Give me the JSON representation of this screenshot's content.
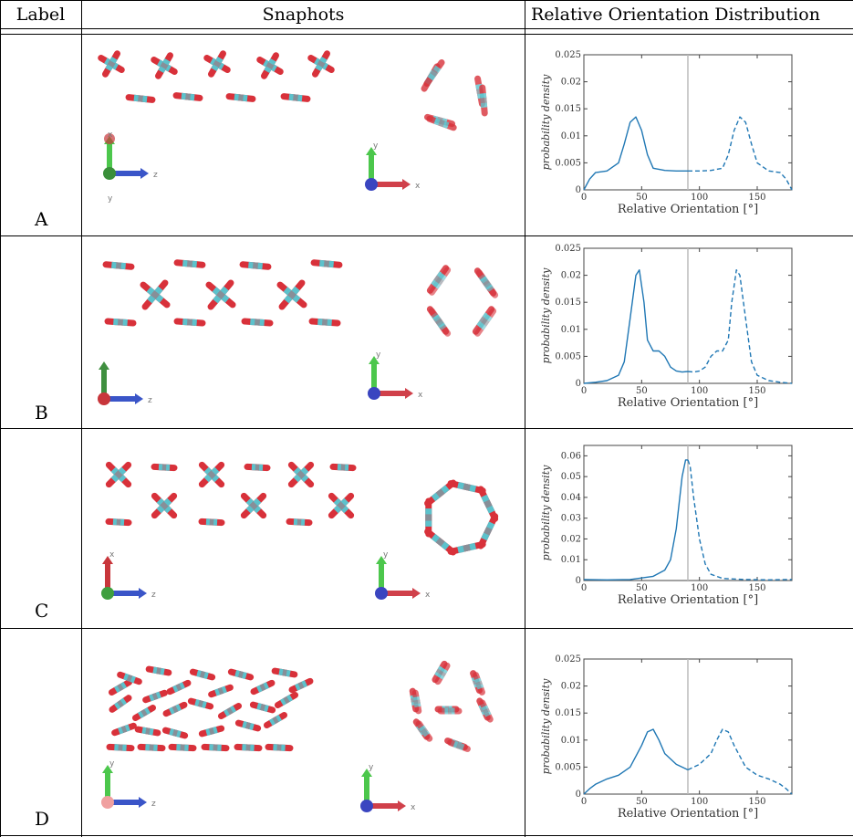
{
  "table": {
    "headers": [
      "Label",
      "Snaphots",
      "Relative Orientation Distribution"
    ],
    "rows": [
      {
        "label": "A",
        "left_axes": [
          "x",
          "z",
          "y"
        ],
        "right_axes": [
          "y",
          "x"
        ]
      },
      {
        "label": "B",
        "left_axes": [
          "z"
        ],
        "right_axes": [
          "y",
          "x"
        ]
      },
      {
        "label": "C",
        "left_axes": [
          "x",
          "z"
        ],
        "right_axes": [
          "y",
          "x"
        ]
      },
      {
        "label": "D",
        "left_axes": [
          "y",
          "z"
        ],
        "right_axes": [
          "y",
          "x"
        ]
      }
    ]
  },
  "colors": {
    "oxygen": "#d8313a",
    "carbon": "#5cc2cc",
    "line": "#1f77b4",
    "marker": "#bbbbbb"
  },
  "chart_data": [
    {
      "type": "line",
      "xlabel": "Relative Orientation [°]",
      "ylabel": "probability density",
      "xlim": [
        0,
        180
      ],
      "ylim": [
        0,
        0.025
      ],
      "xticks": [
        0,
        50,
        100,
        150
      ],
      "yticks": [
        0,
        0.005,
        0.01,
        0.015,
        0.02,
        0.025
      ],
      "ytick_labels": [
        "0",
        "0.005",
        "0.01",
        "0.015",
        "0.02",
        "0.025"
      ],
      "vline": 90,
      "series": [
        {
          "style": "solid",
          "x": [
            0,
            5,
            10,
            20,
            30,
            35,
            40,
            45,
            50,
            55,
            60,
            70,
            80,
            90
          ],
          "y": [
            0.0,
            0.002,
            0.0032,
            0.0035,
            0.005,
            0.0085,
            0.0125,
            0.0135,
            0.011,
            0.0065,
            0.004,
            0.0036,
            0.0035,
            0.0035
          ]
        },
        {
          "style": "dashed",
          "x": [
            90,
            100,
            110,
            120,
            125,
            130,
            135,
            140,
            145,
            150,
            160,
            170,
            175,
            180
          ],
          "y": [
            0.0035,
            0.0035,
            0.0036,
            0.004,
            0.0065,
            0.011,
            0.0135,
            0.0125,
            0.0085,
            0.005,
            0.0035,
            0.0032,
            0.002,
            0.0
          ]
        }
      ]
    },
    {
      "type": "line",
      "xlabel": "Relative Orientation [°]",
      "ylabel": "probability density",
      "xlim": [
        0,
        180
      ],
      "ylim": [
        0,
        0.025
      ],
      "xticks": [
        0,
        50,
        100,
        150
      ],
      "yticks": [
        0,
        0.005,
        0.01,
        0.015,
        0.02,
        0.025
      ],
      "ytick_labels": [
        "0",
        "0.005",
        "0.01",
        "0.015",
        "0.02",
        "0.025"
      ],
      "vline": 90,
      "series": [
        {
          "style": "solid",
          "x": [
            0,
            10,
            20,
            30,
            35,
            40,
            45,
            48,
            52,
            55,
            60,
            65,
            70,
            75,
            80,
            85,
            90
          ],
          "y": [
            0.0,
            0.0002,
            0.0005,
            0.0015,
            0.004,
            0.012,
            0.02,
            0.021,
            0.015,
            0.008,
            0.006,
            0.006,
            0.005,
            0.003,
            0.0023,
            0.0021,
            0.0022
          ]
        },
        {
          "style": "dashed",
          "x": [
            90,
            95,
            100,
            105,
            110,
            115,
            120,
            125,
            128,
            132,
            135,
            140,
            145,
            150,
            160,
            170,
            180
          ],
          "y": [
            0.0022,
            0.0021,
            0.0023,
            0.003,
            0.005,
            0.006,
            0.006,
            0.008,
            0.015,
            0.021,
            0.02,
            0.012,
            0.004,
            0.0015,
            0.0005,
            0.0002,
            0.0
          ]
        }
      ]
    },
    {
      "type": "line",
      "xlabel": "Relative Orientation [°]",
      "ylabel": "probability density",
      "xlim": [
        0,
        180
      ],
      "ylim": [
        0,
        0.065
      ],
      "xticks": [
        0,
        50,
        100,
        150
      ],
      "yticks": [
        0,
        0.01,
        0.02,
        0.03,
        0.04,
        0.05,
        0.06
      ],
      "ytick_labels": [
        "0",
        "0.01",
        "0.02",
        "0.03",
        "0.04",
        "0.05",
        "0.06"
      ],
      "vline": 90,
      "series": [
        {
          "style": "solid",
          "x": [
            0,
            20,
            40,
            60,
            70,
            75,
            80,
            85,
            88,
            90
          ],
          "y": [
            0.0005,
            0.0003,
            0.0005,
            0.002,
            0.005,
            0.01,
            0.025,
            0.05,
            0.058,
            0.058
          ]
        },
        {
          "style": "dashed",
          "x": [
            90,
            92,
            95,
            100,
            105,
            110,
            120,
            140,
            160,
            180
          ],
          "y": [
            0.058,
            0.055,
            0.04,
            0.02,
            0.008,
            0.003,
            0.001,
            0.0005,
            0.0003,
            0.0005
          ]
        }
      ]
    },
    {
      "type": "line",
      "xlabel": "Relative Orientation [°]",
      "ylabel": "probability density",
      "xlim": [
        0,
        180
      ],
      "ylim": [
        0,
        0.025
      ],
      "xticks": [
        0,
        50,
        100,
        150
      ],
      "yticks": [
        0,
        0.005,
        0.01,
        0.015,
        0.02,
        0.025
      ],
      "ytick_labels": [
        "0",
        "0.005",
        "0.01",
        "0.015",
        "0.02",
        "0.025"
      ],
      "vline": 90,
      "series": [
        {
          "style": "solid",
          "x": [
            0,
            5,
            10,
            20,
            30,
            40,
            50,
            55,
            60,
            65,
            70,
            80,
            90
          ],
          "y": [
            0.0,
            0.001,
            0.0018,
            0.0028,
            0.0035,
            0.005,
            0.009,
            0.0115,
            0.012,
            0.01,
            0.0075,
            0.0055,
            0.0045
          ]
        },
        {
          "style": "dashed",
          "x": [
            90,
            100,
            110,
            115,
            120,
            125,
            130,
            140,
            150,
            160,
            170,
            175,
            180
          ],
          "y": [
            0.0045,
            0.0055,
            0.0075,
            0.01,
            0.012,
            0.0115,
            0.009,
            0.005,
            0.0035,
            0.0028,
            0.0018,
            0.001,
            0.0
          ]
        }
      ]
    }
  ]
}
